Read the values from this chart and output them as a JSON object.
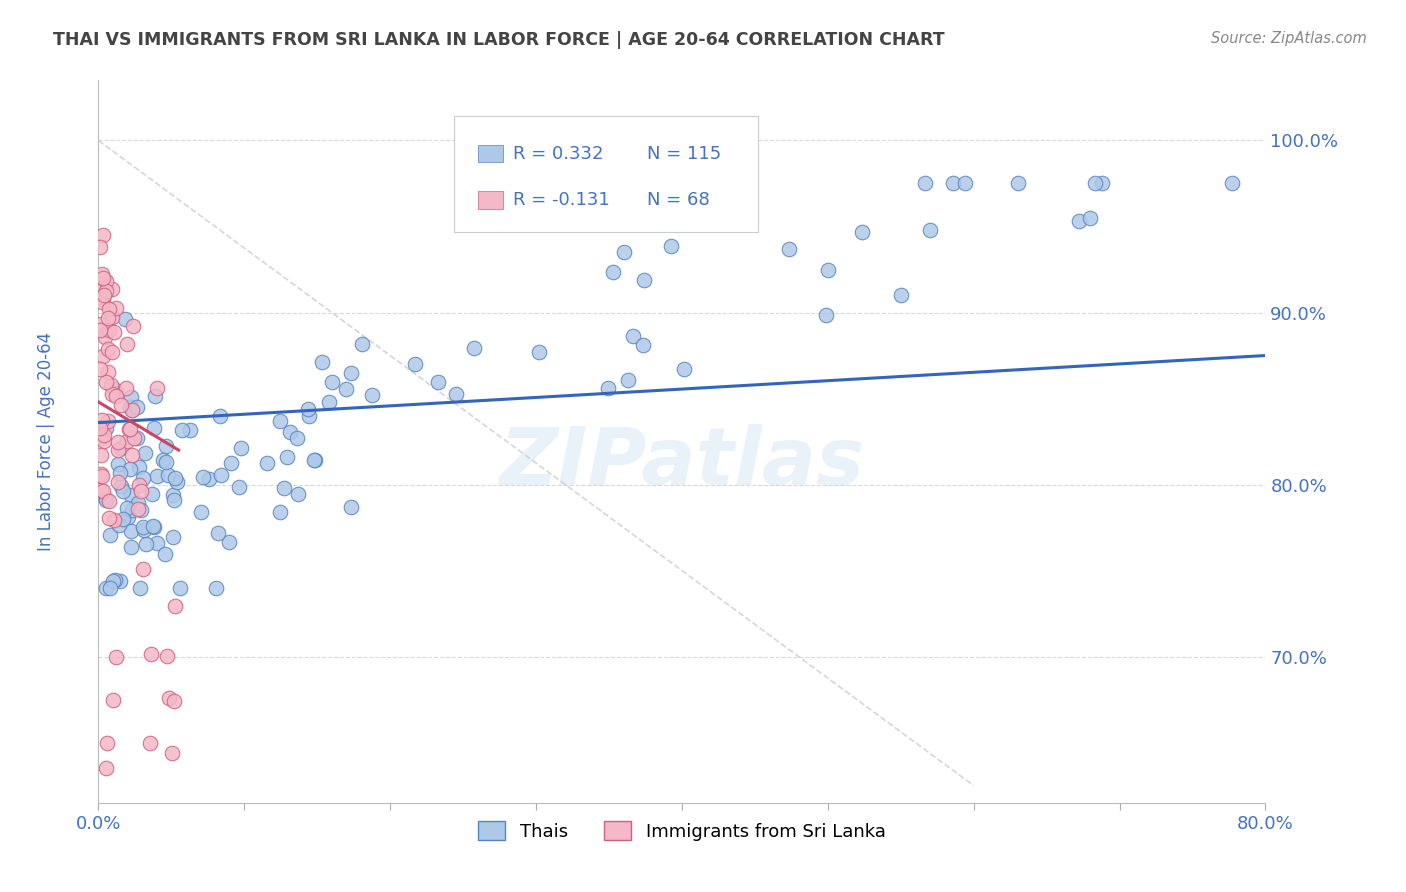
{
  "title": "THAI VS IMMIGRANTS FROM SRI LANKA IN LABOR FORCE | AGE 20-64 CORRELATION CHART",
  "source": "Source: ZipAtlas.com",
  "ylabel": "In Labor Force | Age 20-64",
  "xlim": [
    0.0,
    0.8
  ],
  "ylim": [
    0.615,
    1.035
  ],
  "yticks": [
    0.7,
    0.8,
    0.9,
    1.0
  ],
  "ytick_labels": [
    "70.0%",
    "80.0%",
    "90.0%",
    "100.0%"
  ],
  "xticks": [
    0.0,
    0.1,
    0.2,
    0.3,
    0.4,
    0.5,
    0.6,
    0.7,
    0.8
  ],
  "xtick_labels": [
    "0.0%",
    "",
    "",
    "",
    "",
    "",
    "",
    "",
    "80.0%"
  ],
  "watermark": "ZIPatlas",
  "blue_color": "#aec8e8",
  "blue_edge": "#5585c0",
  "pink_color": "#f4b8c8",
  "pink_edge": "#d06080",
  "trend_blue": "#3366bb",
  "trend_pink": "#cc4466",
  "trend_dashed_color": "#cccccc",
  "axis_color": "#4472C4",
  "title_color": "#444444",
  "legend_r1": "R = 0.332",
  "legend_n1": "N = 115",
  "legend_r2": "R = -0.131",
  "legend_n2": "N = 68"
}
